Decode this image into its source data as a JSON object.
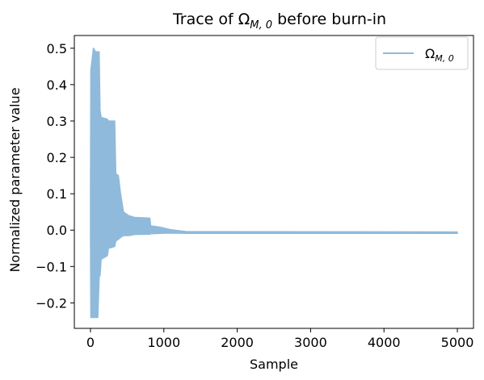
{
  "chart_data": {
    "type": "line",
    "title": "Trace of Ω",
    "title_sub": "M, 0",
    "title_suffix": " before burn-in",
    "xlabel": "Sample",
    "ylabel": "Normalized parameter value",
    "xlim": [
      -220,
      5220
    ],
    "ylim": [
      -0.27,
      0.535
    ],
    "xticks": [
      0,
      1000,
      2000,
      3000,
      4000,
      5000
    ],
    "xtick_labels": [
      "0",
      "1000",
      "2000",
      "3000",
      "4000",
      "5000"
    ],
    "yticks": [
      -0.2,
      -0.1,
      0.0,
      0.1,
      0.2,
      0.3,
      0.4,
      0.5
    ],
    "ytick_labels": [
      "−0.2",
      "−0.1",
      "0.0",
      "0.1",
      "0.2",
      "0.3",
      "0.4",
      "0.5"
    ],
    "grid": false,
    "legend": {
      "position": "top-right",
      "label": "Ω",
      "label_sub": "M, 0"
    },
    "series": [
      {
        "name": "Ω_M,0",
        "color": "#8fbadb",
        "envelope": [
          {
            "x": 0,
            "min": -0.01,
            "max": 0.11
          },
          {
            "x": 5,
            "min": -0.24,
            "max": 0.44
          },
          {
            "x": 40,
            "min": -0.24,
            "max": 0.5
          },
          {
            "x": 70,
            "min": -0.24,
            "max": 0.49
          },
          {
            "x": 100,
            "min": -0.24,
            "max": 0.49
          },
          {
            "x": 118,
            "min": -0.13,
            "max": 0.49
          },
          {
            "x": 130,
            "min": -0.125,
            "max": 0.33
          },
          {
            "x": 145,
            "min": -0.08,
            "max": 0.31
          },
          {
            "x": 230,
            "min": -0.07,
            "max": 0.305
          },
          {
            "x": 245,
            "min": -0.05,
            "max": 0.3
          },
          {
            "x": 330,
            "min": -0.045,
            "max": 0.3
          },
          {
            "x": 345,
            "min": -0.03,
            "max": 0.155
          },
          {
            "x": 380,
            "min": -0.025,
            "max": 0.15
          },
          {
            "x": 410,
            "min": -0.02,
            "max": 0.1
          },
          {
            "x": 450,
            "min": -0.015,
            "max": 0.05
          },
          {
            "x": 520,
            "min": -0.015,
            "max": 0.04
          },
          {
            "x": 600,
            "min": -0.012,
            "max": 0.035
          },
          {
            "x": 810,
            "min": -0.011,
            "max": 0.033
          },
          {
            "x": 820,
            "min": -0.01,
            "max": 0.012
          },
          {
            "x": 950,
            "min": -0.009,
            "max": 0.008
          },
          {
            "x": 1100,
            "min": -0.008,
            "max": 0.001
          },
          {
            "x": 1300,
            "min": -0.009,
            "max": -0.004
          },
          {
            "x": 5000,
            "min": -0.009,
            "max": -0.005
          }
        ]
      }
    ]
  }
}
